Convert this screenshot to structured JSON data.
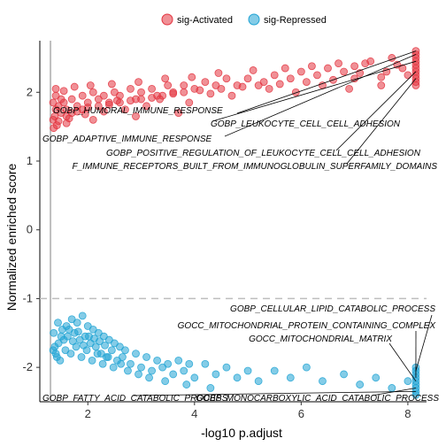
{
  "chart_data": {
    "type": "scatter",
    "xlabel": "-log10 p.adjust",
    "ylabel": "Normalized enriched score",
    "xlim": [
      1.1,
      8.35
    ],
    "ylim": [
      -2.5,
      2.75
    ],
    "xticks": [
      2,
      4,
      6,
      8
    ],
    "yticks": [
      -2,
      -1,
      0,
      1,
      2
    ],
    "grid": false,
    "legend_position": "top",
    "vline_x": 1.3,
    "hline_y": -1,
    "legend": [
      {
        "name": "sig-Activated",
        "color": "#E3343F"
      },
      {
        "name": "sig-Repressed",
        "color": "#1FA3D4"
      }
    ],
    "series": [
      {
        "name": "sig-Activated",
        "color": "#E3343F",
        "points": [
          [
            8.15,
            2.6
          ],
          [
            8.15,
            2.55
          ],
          [
            8.15,
            2.5
          ],
          [
            8.15,
            2.45
          ],
          [
            8.15,
            2.4
          ],
          [
            8.15,
            2.35
          ],
          [
            8.15,
            2.3
          ],
          [
            8.15,
            2.25
          ],
          [
            8.15,
            2.2
          ],
          [
            8.15,
            2.15
          ],
          [
            8.15,
            2.1
          ],
          [
            7.2,
            2.42
          ],
          [
            7.0,
            2.38
          ],
          [
            6.8,
            2.3
          ],
          [
            6.5,
            2.35
          ],
          [
            6.3,
            2.25
          ],
          [
            6.0,
            2.3
          ],
          [
            5.8,
            2.2
          ],
          [
            5.5,
            2.25
          ],
          [
            5.3,
            2.15
          ],
          [
            5.0,
            2.2
          ],
          [
            4.8,
            2.1
          ],
          [
            4.6,
            2.2
          ],
          [
            4.4,
            2.1
          ],
          [
            4.2,
            2.15
          ],
          [
            4.0,
            2.05
          ],
          [
            3.8,
            2.1
          ],
          [
            3.6,
            2.0
          ],
          [
            3.5,
            2.1
          ],
          [
            3.3,
            1.95
          ],
          [
            3.2,
            2.05
          ],
          [
            3.0,
            2.0
          ],
          [
            2.9,
            1.9
          ],
          [
            2.8,
            2.05
          ],
          [
            2.6,
            1.95
          ],
          [
            2.5,
            2.0
          ],
          [
            2.4,
            1.85
          ],
          [
            2.3,
            1.95
          ],
          [
            2.2,
            1.9
          ],
          [
            2.1,
            2.0
          ],
          [
            2.0,
            1.85
          ],
          [
            1.9,
            1.95
          ],
          [
            1.8,
            1.8
          ],
          [
            1.7,
            1.9
          ],
          [
            1.6,
            1.75
          ],
          [
            1.55,
            1.85
          ],
          [
            1.5,
            1.7
          ],
          [
            1.45,
            1.8
          ],
          [
            1.4,
            1.75
          ],
          [
            1.38,
            1.65
          ],
          [
            1.35,
            1.85
          ],
          [
            1.35,
            1.6
          ],
          [
            1.4,
            1.95
          ],
          [
            1.5,
            1.9
          ],
          [
            1.6,
            1.65
          ],
          [
            1.7,
            1.7
          ],
          [
            1.8,
            1.72
          ],
          [
            1.9,
            1.75
          ],
          [
            2.0,
            1.78
          ],
          [
            2.2,
            1.8
          ],
          [
            2.4,
            1.82
          ],
          [
            2.6,
            1.85
          ],
          [
            2.8,
            1.88
          ],
          [
            3.0,
            1.9
          ],
          [
            3.2,
            1.92
          ],
          [
            3.4,
            1.95
          ],
          [
            3.6,
            1.98
          ],
          [
            3.8,
            2.0
          ],
          [
            4.1,
            2.03
          ],
          [
            4.5,
            2.05
          ],
          [
            4.9,
            2.08
          ],
          [
            5.2,
            2.1
          ],
          [
            5.6,
            2.12
          ],
          [
            6.1,
            2.15
          ],
          [
            6.6,
            2.18
          ],
          [
            7.0,
            2.2
          ],
          [
            7.5,
            2.22
          ],
          [
            8.0,
            2.25
          ],
          [
            7.8,
            2.4
          ],
          [
            7.5,
            2.1
          ],
          [
            6.9,
            2.05
          ],
          [
            5.9,
            2.0
          ],
          [
            4.7,
            1.95
          ],
          [
            3.9,
            1.85
          ],
          [
            3.1,
            1.8
          ],
          [
            2.7,
            1.75
          ],
          [
            2.3,
            1.72
          ],
          [
            1.95,
            1.68
          ],
          [
            1.65,
            1.62
          ],
          [
            1.45,
            1.58
          ],
          [
            1.42,
            1.52
          ],
          [
            1.6,
            1.55
          ],
          [
            2.1,
            1.6
          ],
          [
            2.9,
            1.65
          ],
          [
            3.7,
            1.7
          ],
          [
            1.36,
            1.48
          ],
          [
            1.4,
            2.05
          ],
          [
            1.55,
            2.02
          ],
          [
            1.75,
            2.08
          ],
          [
            2.05,
            2.1
          ],
          [
            2.45,
            2.12
          ],
          [
            2.95,
            2.15
          ],
          [
            3.45,
            2.2
          ],
          [
            3.95,
            2.22
          ],
          [
            4.45,
            2.28
          ],
          [
            5.1,
            2.32
          ],
          [
            5.7,
            2.35
          ],
          [
            6.2,
            2.38
          ],
          [
            6.7,
            2.42
          ],
          [
            7.3,
            2.45
          ],
          [
            7.7,
            2.5
          ],
          [
            7.9,
            2.35
          ],
          [
            7.6,
            2.3
          ],
          [
            7.1,
            2.28
          ],
          [
            6.4,
            2.1
          ],
          [
            5.4,
            2.05
          ],
          [
            4.3,
            1.98
          ],
          [
            3.35,
            1.9
          ],
          [
            2.55,
            1.88
          ]
        ]
      },
      {
        "name": "sig-Repressed",
        "color": "#1FA3D4",
        "points": [
          [
            1.35,
            -1.75
          ],
          [
            1.38,
            -1.7
          ],
          [
            1.4,
            -1.8
          ],
          [
            1.45,
            -1.65
          ],
          [
            1.5,
            -1.55
          ],
          [
            1.55,
            -1.6
          ],
          [
            1.6,
            -1.4
          ],
          [
            1.65,
            -1.45
          ],
          [
            1.7,
            -1.3
          ],
          [
            1.75,
            -1.5
          ],
          [
            1.8,
            -1.35
          ],
          [
            1.85,
            -1.6
          ],
          [
            1.9,
            -1.25
          ],
          [
            1.95,
            -1.55
          ],
          [
            2.0,
            -1.4
          ],
          [
            2.05,
            -1.65
          ],
          [
            2.1,
            -1.45
          ],
          [
            2.15,
            -1.7
          ],
          [
            2.2,
            -1.5
          ],
          [
            2.25,
            -1.8
          ],
          [
            2.3,
            -1.55
          ],
          [
            2.35,
            -1.85
          ],
          [
            2.4,
            -1.6
          ],
          [
            2.45,
            -1.75
          ],
          [
            2.5,
            -1.65
          ],
          [
            2.55,
            -1.9
          ],
          [
            2.6,
            -1.7
          ],
          [
            2.65,
            -1.85
          ],
          [
            2.7,
            -1.75
          ],
          [
            2.8,
            -1.95
          ],
          [
            2.9,
            -1.8
          ],
          [
            3.0,
            -2.0
          ],
          [
            3.1,
            -1.85
          ],
          [
            3.2,
            -2.05
          ],
          [
            3.3,
            -1.9
          ],
          [
            3.4,
            -2.0
          ],
          [
            3.5,
            -1.95
          ],
          [
            3.6,
            -2.1
          ],
          [
            3.7,
            -1.9
          ],
          [
            3.8,
            -2.05
          ],
          [
            3.9,
            -1.95
          ],
          [
            4.0,
            -2.15
          ],
          [
            4.2,
            -1.95
          ],
          [
            4.4,
            -2.1
          ],
          [
            4.6,
            -2.0
          ],
          [
            4.8,
            -2.15
          ],
          [
            5.0,
            -2.05
          ],
          [
            5.2,
            -2.2
          ],
          [
            5.5,
            -2.05
          ],
          [
            5.8,
            -2.15
          ],
          [
            6.1,
            -2.0
          ],
          [
            6.4,
            -2.2
          ],
          [
            6.8,
            -2.1
          ],
          [
            7.1,
            -2.25
          ],
          [
            7.4,
            -2.15
          ],
          [
            7.7,
            -2.3
          ],
          [
            8.0,
            -2.2
          ],
          [
            8.15,
            -2.0
          ],
          [
            8.15,
            -2.05
          ],
          [
            8.15,
            -2.1
          ],
          [
            8.15,
            -2.15
          ],
          [
            8.15,
            -2.2
          ],
          [
            8.15,
            -2.25
          ],
          [
            8.15,
            -2.3
          ],
          [
            8.15,
            -2.35
          ],
          [
            8.15,
            -2.4
          ],
          [
            1.42,
            -1.85
          ],
          [
            1.48,
            -1.9
          ],
          [
            1.58,
            -1.75
          ],
          [
            1.68,
            -1.8
          ],
          [
            1.78,
            -1.7
          ],
          [
            1.88,
            -1.85
          ],
          [
            1.98,
            -1.75
          ],
          [
            2.08,
            -1.9
          ],
          [
            2.18,
            -1.8
          ],
          [
            2.28,
            -1.95
          ],
          [
            2.38,
            -1.85
          ],
          [
            2.48,
            -2.0
          ],
          [
            2.62,
            -1.95
          ],
          [
            2.75,
            -2.05
          ],
          [
            2.95,
            -2.1
          ],
          [
            3.15,
            -2.15
          ],
          [
            3.45,
            -2.2
          ],
          [
            3.85,
            -2.25
          ],
          [
            4.3,
            -2.3
          ],
          [
            1.36,
            -1.5
          ],
          [
            1.44,
            -1.35
          ],
          [
            1.52,
            -1.45
          ],
          [
            1.62,
            -1.55
          ],
          [
            1.72,
            -1.62
          ],
          [
            1.82,
            -1.48
          ],
          [
            1.92,
            -1.68
          ],
          [
            2.02,
            -1.55
          ],
          [
            2.12,
            -1.58
          ],
          [
            2.22,
            -1.62
          ],
          [
            2.32,
            -1.68
          ]
        ]
      }
    ],
    "annotations": [
      {
        "label": "GOBP_HUMORAL_IMMUNE_RESPONSE",
        "x": 8.15,
        "y": 2.6,
        "series": "sig-Activated"
      },
      {
        "label": "GOBP_LEUKOCYTE_CELL_CELL_ADHESION",
        "x": 8.15,
        "y": 2.45,
        "series": "sig-Activated"
      },
      {
        "label": "GOBP_ADAPTIVE_IMMUNE_RESPONSE",
        "x": 8.15,
        "y": 2.55,
        "series": "sig-Activated"
      },
      {
        "label": "GOBP_POSITIVE_REGULATION_OF_LEUKOCYTE_CELL_CELL_ADHESION",
        "x": 8.15,
        "y": 2.3,
        "series": "sig-Activated"
      },
      {
        "label": "F_IMMUNE_RECEPTORS_BUILT_FROM_IMMUNOGLOBULIN_SUPERFAMILY_DOMAINS",
        "x": 8.15,
        "y": 2.2,
        "series": "sig-Activated"
      },
      {
        "label": "GOBP_CELLULAR_LIPID_CATABOLIC_PROCESS",
        "x": 8.15,
        "y": -2.05,
        "series": "sig-Repressed"
      },
      {
        "label": "GOCC_MITOCHONDRIAL_PROTEIN_CONTAINING_COMPLEX",
        "x": 8.15,
        "y": -2.15,
        "series": "sig-Repressed"
      },
      {
        "label": "GOCC_MITOCHONDRIAL_MATRIX",
        "x": 8.15,
        "y": -2.2,
        "series": "sig-Repressed"
      },
      {
        "label": "GOBP_FATTY_ACID_CATABOLIC_PROCESS",
        "x": 8.15,
        "y": -2.35,
        "series": "sig-Repressed"
      },
      {
        "label": "GOBP_MONOCARBOXYLIC_ACID_CATABOLIC_PROCESS",
        "x": 8.15,
        "y": -2.3,
        "series": "sig-Repressed"
      }
    ]
  }
}
